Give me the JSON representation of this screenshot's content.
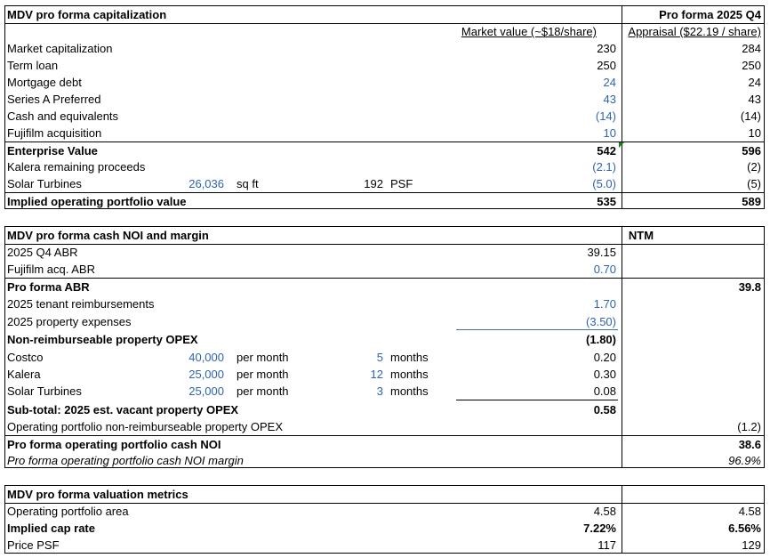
{
  "cap": {
    "title": "MDV pro forma capitalization",
    "right_header": "Pro forma 2025 Q4",
    "col_mv": "Market value (~$18/share)",
    "col_ap": "Appraisal ($22.19 / share)",
    "rows": [
      {
        "label": "Market capitalization",
        "mv": "230",
        "ap": "284"
      },
      {
        "label": "Term loan",
        "mv": "250",
        "ap": "250"
      },
      {
        "label": "Mortgage debt",
        "mv": "24",
        "ap": "24"
      },
      {
        "label": "Series A Preferred",
        "mv": "43",
        "ap": "43"
      },
      {
        "label": "Cash and equivalents",
        "mv": "(14)",
        "ap": "(14)"
      },
      {
        "label": "Fujifilm acquisition",
        "mv": "10",
        "ap": "10"
      }
    ],
    "ev": {
      "label": "Enterprise Value",
      "mv": "542",
      "ap": "596"
    },
    "kalera": {
      "label": "Kalera remaining proceeds",
      "mv": "(2.1)",
      "ap": "(2)"
    },
    "solar": {
      "label": "Solar Turbines",
      "sqft": "26,036",
      "sqft_unit": "sq ft",
      "psf": "192",
      "psf_unit": "PSF",
      "mv": "(5.0)",
      "ap": "(5)"
    },
    "implied": {
      "label": "Implied operating portfolio value",
      "mv": "535",
      "ap": "589"
    }
  },
  "noi": {
    "title": "MDV pro forma cash NOI and margin",
    "ntm": "NTM",
    "abr": {
      "label": "2025 Q4 ABR",
      "v": "39.15"
    },
    "fuji": {
      "label": "Fujifilm acq. ABR",
      "v": "0.70"
    },
    "pf_abr": {
      "label": "Pro forma ABR",
      "v": "39.8"
    },
    "reimb": {
      "label": "2025 tenant reimbursements",
      "v": "1.70"
    },
    "propexp": {
      "label": "2025 property expenses",
      "v": "(3.50)"
    },
    "nonreimb": {
      "label": "Non-reimburseable property OPEX",
      "v": "(1.80)"
    },
    "vacant": [
      {
        "label": "Costco",
        "amt": "40,000",
        "per": "per month",
        "n": "5",
        "unit": "months",
        "v": "0.20"
      },
      {
        "label": "Kalera",
        "amt": "25,000",
        "per": "per month",
        "n": "12",
        "unit": "months",
        "v": "0.30"
      },
      {
        "label": "Solar Turbines",
        "amt": "25,000",
        "per": "per month",
        "n": "3",
        "unit": "months",
        "v": "0.08"
      }
    ],
    "subtotal": {
      "label": "Sub-total: 2025 est. vacant property OPEX",
      "v": "0.58"
    },
    "op_nonreimb": {
      "label": "Operating portfolio non-reimburseable property OPEX",
      "v": "(1.2)"
    },
    "cash_noi": {
      "label": "Pro forma operating portfolio cash NOI",
      "v": "38.6"
    },
    "margin": {
      "label": "Pro forma operating portfolio cash NOI margin",
      "v": "96.9%"
    }
  },
  "val": {
    "title": "MDV pro forma valuation metrics",
    "rows": [
      {
        "label": "Operating portfolio area",
        "mv": "4.58",
        "ap": "4.58"
      },
      {
        "label": "Implied cap rate",
        "mv": "7.22%",
        "ap": "6.56%"
      },
      {
        "label": "Price PSF",
        "mv": "117",
        "ap": "129"
      }
    ]
  }
}
